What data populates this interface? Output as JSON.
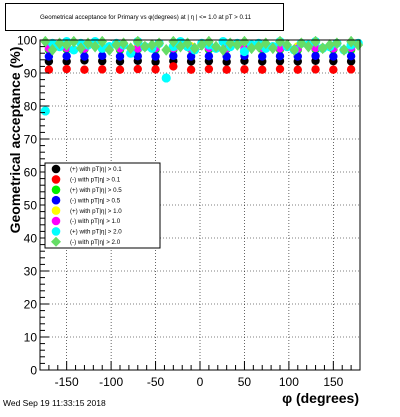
{
  "title": "Geometrical acceptance for Primary vs φ(degrees) at | η | <= 1.0 at pT > 0.11",
  "timestamp": "Wed Sep 19 11:33:15 2018",
  "chart_data": {
    "type": "scatter",
    "title": "Geometrical acceptance for Primary vs φ(degrees) at | η | <= 1.0 at pT > 0.11",
    "xlabel": "φ (degrees)",
    "ylabel": "Geometrical acceptance (%)",
    "xlim": [
      -180,
      180
    ],
    "ylim": [
      0,
      100
    ],
    "xticks": [
      -150,
      -100,
      -50,
      0,
      50,
      100,
      150
    ],
    "yticks": [
      0,
      10,
      20,
      30,
      40,
      50,
      60,
      70,
      80,
      90,
      100
    ],
    "grid": true,
    "legend_position": "middle-left",
    "series": [
      {
        "name": "(+) with pT|η| > 0.1",
        "color": "#000000",
        "marker": "circle",
        "x": [
          -170,
          -150,
          -130,
          -110,
          -90,
          -70,
          -50,
          -30,
          -10,
          10,
          30,
          50,
          70,
          90,
          110,
          130,
          150,
          170
        ],
        "y": [
          93.5,
          93.5,
          93.8,
          93.6,
          93.5,
          93.7,
          93.4,
          93.6,
          93.5,
          93.6,
          93.4,
          93.7,
          93.5,
          93.6,
          93.5,
          93.7,
          93.6,
          93.5
        ]
      },
      {
        "name": "(-) with pT|η| > 0.1",
        "color": "#ff0000",
        "marker": "circle",
        "x": [
          -170,
          -150,
          -130,
          -110,
          -90,
          -70,
          -50,
          -30,
          -10,
          10,
          30,
          50,
          70,
          90,
          110,
          130,
          150,
          170
        ],
        "y": [
          91.0,
          91.2,
          91.0,
          91.1,
          91.0,
          91.2,
          91.1,
          92.0,
          91.0,
          91.2,
          91.0,
          91.1,
          91.0,
          91.2,
          91.0,
          91.1,
          91.0,
          91.1
        ]
      },
      {
        "name": "(+) with pT|η| > 0.5",
        "color": "#00ee00",
        "marker": "circle",
        "x": [
          -170,
          -150,
          -130,
          -110,
          -90,
          -70,
          -50,
          -30,
          -10,
          10,
          30,
          50,
          70,
          90,
          110,
          130,
          150,
          170
        ],
        "y": [
          97.0,
          97.2,
          97.1,
          97.3,
          97.0,
          97.2,
          97.1,
          97.0,
          97.2,
          97.1,
          97.3,
          97.0,
          97.2,
          97.1,
          97.0,
          97.2,
          97.1,
          97.0
        ]
      },
      {
        "name": "(-) with pT|η| > 0.5",
        "color": "#0000ff",
        "marker": "circle",
        "x": [
          -170,
          -150,
          -130,
          -110,
          -90,
          -70,
          -50,
          -30,
          -10,
          10,
          30,
          50,
          70,
          90,
          110,
          130,
          150,
          170
        ],
        "y": [
          95.0,
          95.1,
          95.0,
          95.2,
          95.0,
          95.1,
          95.0,
          95.2,
          95.0,
          95.1,
          95.0,
          95.2,
          95.0,
          95.1,
          95.0,
          95.2,
          95.0,
          95.1
        ]
      },
      {
        "name": "(+) with pT|η| > 1.0",
        "color": "#ffff00",
        "marker": "circle",
        "x": [
          -170,
          -150,
          -130,
          -110,
          -90,
          -70,
          -50,
          -30,
          -10,
          10,
          30,
          50,
          70,
          90,
          110,
          130,
          150,
          170
        ],
        "y": [
          98.0,
          98.2,
          98.1,
          98.0,
          98.2,
          98.1,
          98.0,
          98.2,
          98.1,
          98.0,
          98.2,
          98.1,
          98.0,
          98.2,
          98.1,
          98.0,
          98.2,
          98.1
        ]
      },
      {
        "name": "(-) with pT|η| > 1.0",
        "color": "#ff00ff",
        "marker": "circle",
        "x": [
          -170,
          -150,
          -130,
          -110,
          -90,
          -70,
          -50,
          -30,
          -10,
          10,
          30,
          50,
          70,
          90,
          110,
          130,
          150,
          170
        ],
        "y": [
          97.5,
          97.6,
          97.4,
          97.6,
          97.5,
          97.4,
          97.6,
          97.5,
          97.4,
          97.6,
          97.5,
          97.4,
          97.6,
          97.5,
          97.4,
          97.6,
          97.5,
          97.6
        ]
      },
      {
        "name": "(+) with pT|η| > 2.0",
        "color": "#00ffff",
        "marker": "circle",
        "x": [
          -174,
          -166,
          -158,
          -150,
          -142,
          -134,
          -126,
          -118,
          -110,
          -102,
          -94,
          -86,
          -78,
          -70,
          -62,
          -54,
          -46,
          -38,
          -30,
          -22,
          -14,
          -6,
          2,
          10,
          18,
          26,
          34,
          42,
          50,
          58,
          66,
          74,
          82,
          90,
          98,
          106,
          114,
          122,
          130,
          138,
          146,
          154,
          162,
          170,
          178
        ],
        "y": [
          78.5,
          99.0,
          98.0,
          99.5,
          97.0,
          99.0,
          98.5,
          99.5,
          97.5,
          98.0,
          99.0,
          98.5,
          96.0,
          99.5,
          98.0,
          97.5,
          99.0,
          88.5,
          98.0,
          99.5,
          98.0,
          97.0,
          99.0,
          98.5,
          97.5,
          99.5,
          98.0,
          99.0,
          96.5,
          98.5,
          99.0,
          97.5,
          98.0,
          99.5,
          98.0,
          97.0,
          99.0,
          98.5,
          99.5,
          97.5,
          98.0,
          99.0,
          97.0,
          98.5,
          99.0
        ]
      },
      {
        "name": "(-) with pT|η| > 2.0",
        "color": "#66dd66",
        "marker": "diamond",
        "x": [
          -174,
          -166,
          -158,
          -150,
          -142,
          -134,
          -126,
          -118,
          -110,
          -102,
          -94,
          -86,
          -78,
          -70,
          -62,
          -54,
          -46,
          -38,
          -30,
          -22,
          -14,
          -6,
          2,
          10,
          18,
          26,
          34,
          42,
          50,
          58,
          66,
          74,
          82,
          90,
          98,
          106,
          114,
          122,
          130,
          138,
          146,
          154,
          162,
          170,
          178
        ],
        "y": [
          99.5,
          97.0,
          99.0,
          98.5,
          99.5,
          97.5,
          99.0,
          98.0,
          99.5,
          97.0,
          98.5,
          99.0,
          97.5,
          99.5,
          98.0,
          98.5,
          99.0,
          97.0,
          99.5,
          98.0,
          99.0,
          97.5,
          98.5,
          99.5,
          98.0,
          97.0,
          99.0,
          98.5,
          99.5,
          97.5,
          98.0,
          99.0,
          97.5,
          99.5,
          98.5,
          97.0,
          99.0,
          98.0,
          99.5,
          97.5,
          98.5,
          99.0,
          97.0,
          99.5,
          98.5
        ]
      }
    ]
  }
}
